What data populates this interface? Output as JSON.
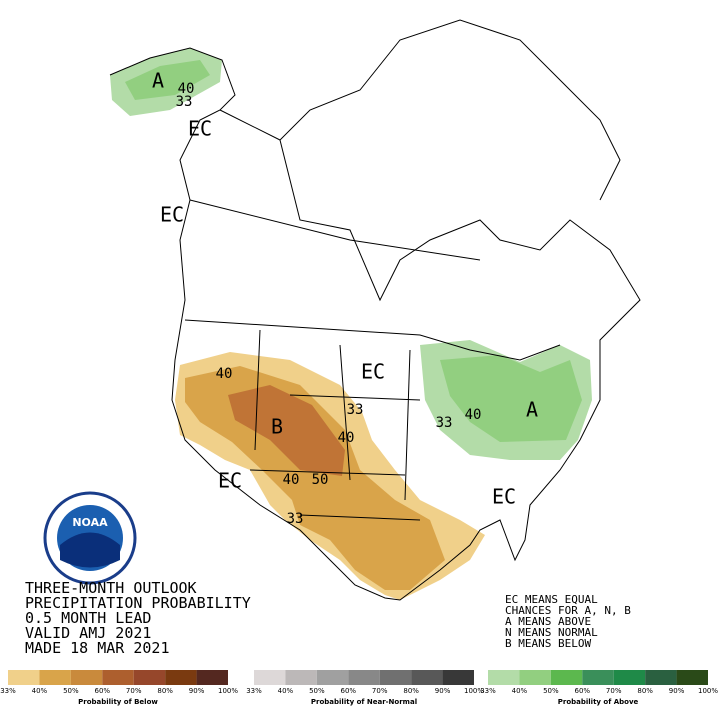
{
  "map_labels": [
    {
      "text": "A"
    },
    {
      "text": "40"
    },
    {
      "text": "33"
    },
    {
      "text": "EC"
    },
    {
      "text": "EC"
    },
    {
      "text": "EC"
    },
    {
      "text": "40"
    },
    {
      "text": "33"
    },
    {
      "text": "B"
    },
    {
      "text": "40"
    },
    {
      "text": "40"
    },
    {
      "text": "50"
    },
    {
      "text": "33"
    },
    {
      "text": "EC"
    },
    {
      "text": "EC"
    },
    {
      "text": "33"
    },
    {
      "text": "40"
    },
    {
      "text": "A"
    }
  ],
  "logo": "NOAA",
  "title_lines": [
    "THREE-MONTH OUTLOOK",
    "PRECIPITATION PROBABILITY",
    "0.5 MONTH LEAD",
    "VALID AMJ 2021",
    "MADE 18 MAR 2021"
  ],
  "key_lines": [
    "EC MEANS EQUAL",
    "CHANCES FOR A, N, B",
    "A MEANS ABOVE",
    "N MEANS NORMAL",
    "B MEANS BELOW"
  ],
  "colorbars": [
    {
      "label": "Probability of Below",
      "colors": [
        "#f0d08a",
        "#d9a44a",
        "#c98a3c",
        "#ad5f2e",
        "#96472b",
        "#7a3a10",
        "#542820"
      ],
      "ticks": [
        "33%",
        "40%",
        "50%",
        "60%",
        "70%",
        "80%",
        "90%",
        "100%"
      ]
    },
    {
      "label": "Probability of Near-Normal",
      "colors": [
        "#ddd8d8",
        "#bcb8b8",
        "#a0a0a0",
        "#888888",
        "#707070",
        "#585858",
        "#383838"
      ],
      "ticks": [
        "33%",
        "40%",
        "50%",
        "60%",
        "70%",
        "80%",
        "90%",
        "100%"
      ]
    },
    {
      "label": "Probability of Above",
      "colors": [
        "#b3dca8",
        "#92cf80",
        "#5cb84e",
        "#3a8f5a",
        "#1f8a48",
        "#2a6040",
        "#2a4a18"
      ],
      "ticks": [
        "33%",
        "40%",
        "50%",
        "60%",
        "70%",
        "80%",
        "90%",
        "100%"
      ]
    }
  ]
}
